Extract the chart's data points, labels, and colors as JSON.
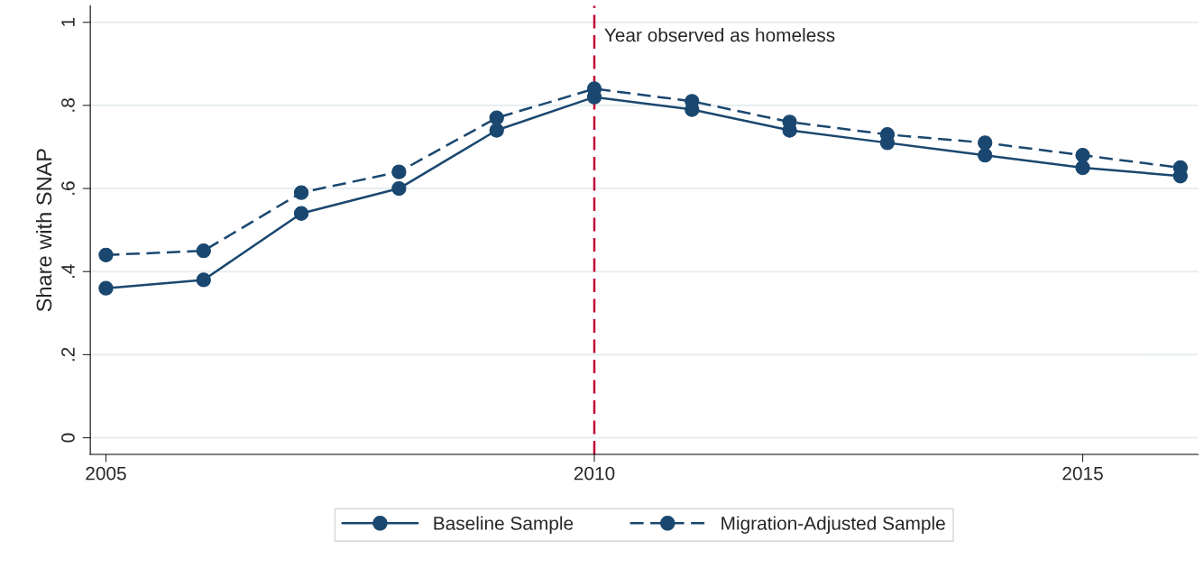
{
  "chart_data": {
    "type": "line",
    "ylabel": "Share with SNAP",
    "x": [
      2005,
      2006,
      2007,
      2008,
      2009,
      2010,
      2011,
      2012,
      2013,
      2014,
      2015,
      2016
    ],
    "series": [
      {
        "name": "Baseline Sample",
        "color": "#1a476f",
        "line_style": "solid",
        "values": [
          0.36,
          0.38,
          0.54,
          0.6,
          0.74,
          0.82,
          0.79,
          0.74,
          0.71,
          0.68,
          0.65,
          0.63
        ]
      },
      {
        "name": "Migration-Adjusted Sample",
        "color": "#1a476f",
        "line_style": "dashed",
        "values": [
          0.44,
          0.45,
          0.59,
          0.64,
          0.77,
          0.84,
          0.81,
          0.76,
          0.73,
          0.71,
          0.68,
          0.65
        ]
      }
    ],
    "marker": "circle",
    "xlim": [
      2004.84,
      2016.18
    ],
    "xticks": [
      2005,
      2010,
      2015
    ],
    "ylim": [
      -0.04,
      1.04
    ],
    "yticks": [
      {
        "value": 0,
        "label": "0"
      },
      {
        "value": 0.2,
        "label": ".2"
      },
      {
        "value": 0.4,
        "label": ".4"
      },
      {
        "value": 0.6,
        "label": ".6"
      },
      {
        "value": 0.8,
        "label": ".8"
      },
      {
        "value": 1,
        "label": "1"
      }
    ],
    "grid": "y",
    "legend": "bottom",
    "ref_lines": [
      {
        "axis": "x",
        "value": 2010,
        "label": "Year observed as homeless",
        "color": "#c10534",
        "line_style": "dashed"
      }
    ]
  }
}
